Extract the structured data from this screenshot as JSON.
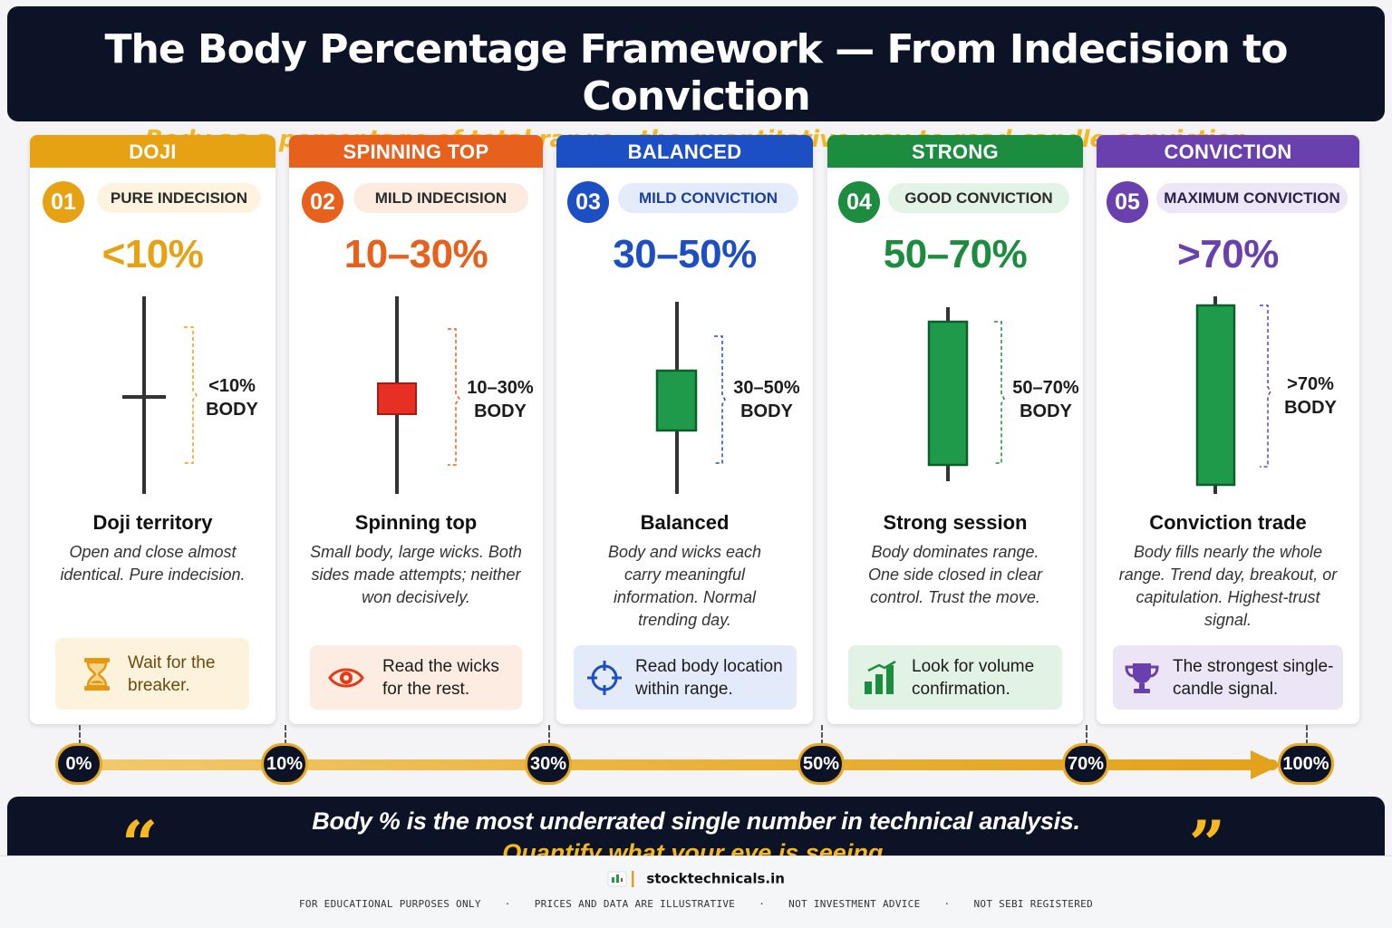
{
  "header": {
    "title": "The Body Percentage Framework — From Indecision to Conviction",
    "subtitle": "Body as a percentage of total range · the quantitative way to read candle conviction"
  },
  "cards": [
    {
      "band": "DOJI",
      "num": "01",
      "tag": "PURE INDECISION",
      "pct": "<10%",
      "body_label_1": "<10%",
      "body_label_2": "BODY",
      "title": "Doji territory",
      "desc": "Open and close almost identical. Pure indecision.",
      "tip": "Wait for the breaker.",
      "icon": "hourglass-icon",
      "color": "#e7a214",
      "tag_bg": "#fdf3df",
      "tip_bg": "#fdf2dc",
      "candle_color": "#333333"
    },
    {
      "band": "SPINNING TOP",
      "num": "02",
      "tag": "MILD INDECISION",
      "pct": "10–30%",
      "body_label_1": "10–30%",
      "body_label_2": "BODY",
      "title": "Spinning top",
      "desc": "Small body, large wicks. Both sides made attempts; neither won decisively.",
      "tip": "Read the wicks for the rest.",
      "icon": "eye-icon",
      "color": "#e8611c",
      "tag_bg": "#fdebe0",
      "tip_bg": "#fdece1",
      "candle_color": "#e53023"
    },
    {
      "band": "BALANCED",
      "num": "03",
      "tag": "MILD CONVICTION",
      "pct": "30–50%",
      "body_label_1": "30–50%",
      "body_label_2": "BODY",
      "title": "Balanced",
      "desc": "Body and wicks each carry meaningful information. Normal trending day.",
      "tip": "Read body location within range.",
      "icon": "crosshair-icon",
      "color": "#1d4fc4",
      "tag_bg": "#e4ecfb",
      "tip_bg": "#e3ebfb",
      "candle_color": "#1e9a4a"
    },
    {
      "band": "STRONG",
      "num": "04",
      "tag": "GOOD CONVICTION",
      "pct": "50–70%",
      "body_label_1": "50–70%",
      "body_label_2": "BODY",
      "title": "Strong session",
      "desc": "Body dominates range. One side closed in clear control. Trust the move.",
      "tip": "Look for volume confirmation.",
      "icon": "bar-chart-icon",
      "color": "#1c8d3e",
      "tag_bg": "#e3f3e6",
      "tip_bg": "#e2f2e4",
      "candle_color": "#1e9a4a"
    },
    {
      "band": "CONVICTION",
      "num": "05",
      "tag": "MAXIMUM CONVICTION",
      "pct": ">70%",
      "body_label_1": ">70%",
      "body_label_2": "BODY",
      "title": "Conviction trade",
      "desc": "Body fills nearly the whole range. Trend day, breakout, or capitulation. Highest-trust signal.",
      "tip": "The strongest single-candle signal.",
      "icon": "trophy-icon",
      "color": "#6a3fae",
      "tag_bg": "#ece6f7",
      "tip_bg": "#ebe5f6",
      "candle_color": "#1e9a4a"
    }
  ],
  "scale": [
    "0%",
    "10%",
    "30%",
    "50%",
    "70%",
    "100%"
  ],
  "quote": {
    "line1": "Body % is the most underrated single number in technical analysis.",
    "line2": "Quantify what your eye is seeing.",
    "open_mark": "“",
    "close_mark": "”"
  },
  "footer": {
    "brand": "stocktechnicals.in",
    "disclaimers": [
      "FOR EDUCATIONAL PURPOSES ONLY",
      "PRICES AND DATA ARE ILLUSTRATIVE",
      "NOT INVESTMENT ADVICE",
      "NOT SEBI REGISTERED"
    ]
  }
}
